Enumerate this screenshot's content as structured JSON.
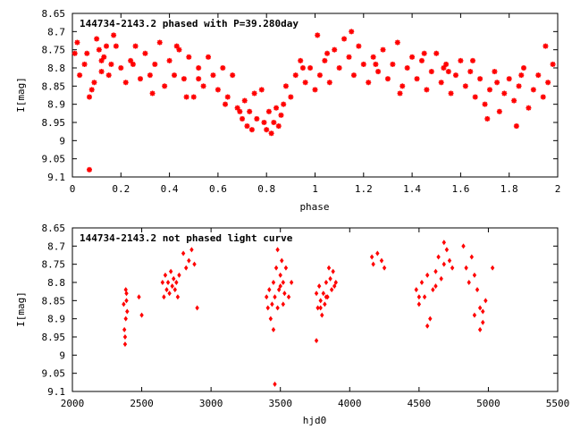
{
  "colors": {
    "points": "#ff0000",
    "axes": "#000000",
    "background": "#ffffff"
  },
  "chart_data": [
    {
      "type": "scatter",
      "title": "144734-2143.2 phased with P=39.280day",
      "xlabel": "phase",
      "ylabel": "I[mag]",
      "xlim": [
        0,
        2
      ],
      "ylim": [
        9.1,
        8.65
      ],
      "y_inverted": true,
      "xticks": [
        "0",
        "0.2",
        "0.4",
        "0.6",
        "0.8",
        "1",
        "1.2",
        "1.4",
        "1.6",
        "1.8",
        "2"
      ],
      "yticks": [
        "8.65",
        "8.7",
        "8.75",
        "8.8",
        "8.85",
        "8.9",
        "8.95",
        "9",
        "9.05",
        "9.1"
      ],
      "marker": "asterisk",
      "x": [
        0.01,
        0.03,
        0.05,
        0.06,
        0.07,
        0.08,
        0.1,
        0.11,
        0.12,
        0.13,
        0.14,
        0.15,
        0.16,
        0.18,
        0.2,
        0.22,
        0.24,
        0.26,
        0.28,
        0.3,
        0.32,
        0.34,
        0.36,
        0.38,
        0.4,
        0.42,
        0.44,
        0.46,
        0.48,
        0.5,
        0.52,
        0.54,
        0.56,
        0.58,
        0.6,
        0.62,
        0.64,
        0.66,
        0.68,
        0.7,
        0.71,
        0.72,
        0.73,
        0.74,
        0.76,
        0.78,
        0.8,
        0.81,
        0.82,
        0.83,
        0.84,
        0.85,
        0.86,
        0.88,
        0.9,
        0.92,
        0.94,
        0.96,
        0.98,
        1.0,
        1.02,
        1.04,
        1.06,
        1.08,
        1.1,
        1.12,
        1.14,
        1.16,
        1.18,
        1.2,
        1.22,
        1.24,
        1.26,
        1.28,
        1.3,
        1.32,
        1.34,
        1.36,
        1.38,
        1.4,
        1.42,
        1.44,
        1.46,
        1.48,
        1.5,
        1.52,
        1.54,
        1.56,
        1.58,
        1.6,
        1.62,
        1.64,
        1.66,
        1.68,
        1.7,
        1.72,
        1.74,
        1.76,
        1.78,
        1.8,
        1.82,
        1.84,
        1.86,
        1.88,
        1.9,
        1.92,
        1.94,
        1.96,
        1.98,
        0.07,
        0.02,
        0.09,
        0.17,
        0.25,
        0.33,
        0.43,
        0.52,
        0.63,
        0.75,
        0.79,
        0.87,
        0.95,
        1.05,
        1.15,
        1.25,
        1.35,
        1.45,
        1.55,
        1.65,
        1.75,
        1.85,
        1.95,
        0.12,
        0.47,
        0.69,
        1.01,
        1.53,
        1.71,
        1.83
      ],
      "y": [
        8.76,
        8.82,
        8.79,
        8.76,
        8.88,
        8.86,
        8.72,
        8.75,
        8.81,
        8.77,
        8.74,
        8.82,
        8.79,
        8.74,
        8.8,
        8.84,
        8.78,
        8.74,
        8.83,
        8.76,
        8.82,
        8.79,
        8.73,
        8.85,
        8.78,
        8.82,
        8.75,
        8.83,
        8.77,
        8.88,
        8.8,
        8.85,
        8.77,
        8.82,
        8.86,
        8.8,
        8.88,
        8.82,
        8.91,
        8.94,
        8.89,
        8.96,
        8.92,
        8.97,
        8.94,
        8.86,
        8.97,
        8.92,
        8.98,
        8.95,
        8.91,
        8.96,
        8.93,
        8.85,
        8.88,
        8.82,
        8.78,
        8.84,
        8.8,
        8.86,
        8.82,
        8.78,
        8.84,
        8.75,
        8.8,
        8.72,
        8.77,
        8.82,
        8.74,
        8.79,
        8.84,
        8.77,
        8.81,
        8.75,
        8.83,
        8.79,
        8.73,
        8.85,
        8.8,
        8.77,
        8.83,
        8.78,
        8.86,
        8.81,
        8.76,
        8.84,
        8.79,
        8.87,
        8.82,
        8.78,
        8.85,
        8.81,
        8.88,
        8.83,
        8.9,
        8.86,
        8.81,
        8.92,
        8.87,
        8.83,
        8.89,
        8.85,
        8.8,
        8.91,
        8.86,
        8.82,
        8.88,
        8.84,
        8.79,
        9.08,
        8.73,
        8.84,
        8.71,
        8.79,
        8.87,
        8.74,
        8.83,
        8.9,
        8.87,
        8.95,
        8.9,
        8.8,
        8.76,
        8.7,
        8.79,
        8.87,
        8.76,
        8.81,
        8.78,
        8.84,
        8.82,
        8.74,
        8.78,
        8.88,
        8.92,
        8.71,
        8.8,
        8.94,
        8.96
      ]
    },
    {
      "type": "scatter",
      "title": "144734-2143.2 not phased light curve",
      "xlabel": "hjd0",
      "ylabel": "I[mag]",
      "xlim": [
        2000,
        5500
      ],
      "ylim": [
        9.1,
        8.65
      ],
      "y_inverted": true,
      "xticks": [
        "2000",
        "2500",
        "3000",
        "3500",
        "4000",
        "4500",
        "5000",
        "5500"
      ],
      "yticks": [
        "8.65",
        "8.7",
        "8.75",
        "8.8",
        "8.85",
        "8.9",
        "8.95",
        "9",
        "9.05",
        "9.1"
      ],
      "marker": "diamond",
      "x": [
        2370,
        2375,
        2380,
        2385,
        2390,
        2395,
        2380,
        2385,
        2390,
        2480,
        2500,
        2650,
        2660,
        2670,
        2680,
        2690,
        2700,
        2710,
        2720,
        2730,
        2740,
        2750,
        2760,
        2770,
        2800,
        2820,
        2840,
        2860,
        2880,
        2900,
        3400,
        3410,
        3420,
        3430,
        3440,
        3450,
        3460,
        3470,
        3480,
        3490,
        3500,
        3510,
        3520,
        3530,
        3540,
        3450,
        3480,
        3500,
        3520,
        3560,
        3580,
        3760,
        3770,
        3780,
        3790,
        3800,
        3810,
        3820,
        3830,
        3840,
        3850,
        3860,
        3870,
        3880,
        3890,
        3900,
        3760,
        3790,
        3830,
        4160,
        4170,
        4200,
        4230,
        4250,
        4480,
        4500,
        4520,
        4540,
        4560,
        4580,
        4600,
        4620,
        4640,
        4660,
        4680,
        4700,
        4720,
        4740,
        4500,
        4560,
        4620,
        4680,
        4820,
        4840,
        4860,
        4880,
        4900,
        4920,
        4940,
        4960,
        4980,
        4900,
        4940,
        4960,
        5030,
        3460
      ],
      "y": [
        8.86,
        8.93,
        8.97,
        8.82,
        8.85,
        8.88,
        8.95,
        8.9,
        8.83,
        8.84,
        8.89,
        8.8,
        8.84,
        8.78,
        8.82,
        8.8,
        8.83,
        8.77,
        8.81,
        8.79,
        8.82,
        8.8,
        8.84,
        8.78,
        8.72,
        8.76,
        8.74,
        8.71,
        8.75,
        8.87,
        8.84,
        8.87,
        8.82,
        8.9,
        8.86,
        8.8,
        8.84,
        8.76,
        8.71,
        8.82,
        8.78,
        8.74,
        8.8,
        8.83,
        8.76,
        8.93,
        8.87,
        8.81,
        8.86,
        8.84,
        8.8,
        8.83,
        8.87,
        8.81,
        8.85,
        8.89,
        8.83,
        8.86,
        8.8,
        8.84,
        8.76,
        8.79,
        8.82,
        8.77,
        8.81,
        8.8,
        8.96,
        8.87,
        8.84,
        8.73,
        8.75,
        8.72,
        8.74,
        8.76,
        8.82,
        8.86,
        8.8,
        8.84,
        8.78,
        8.9,
        8.82,
        8.77,
        8.73,
        8.79,
        8.75,
        8.71,
        8.74,
        8.76,
        8.84,
        8.92,
        8.81,
        8.69,
        8.7,
        8.76,
        8.8,
        8.73,
        8.78,
        8.82,
        8.87,
        8.91,
        8.85,
        8.89,
        8.93,
        8.88,
        8.76,
        9.08
      ]
    }
  ]
}
